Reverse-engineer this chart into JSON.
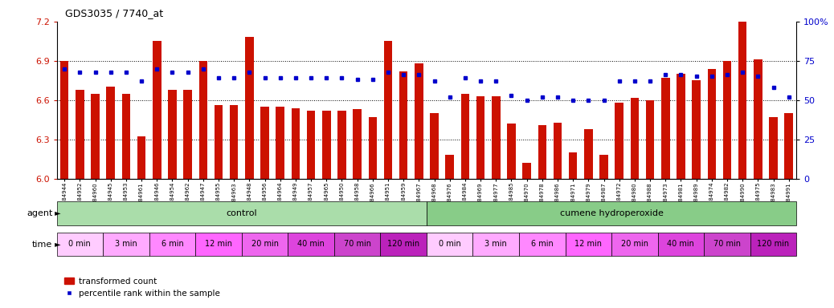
{
  "title": "GDS3035 / 7740_at",
  "samples": [
    "GSM184944",
    "GSM184952",
    "GSM184960",
    "GSM184945",
    "GSM184953",
    "GSM184961",
    "GSM184946",
    "GSM184954",
    "GSM184962",
    "GSM184947",
    "GSM184955",
    "GSM184963",
    "GSM184948",
    "GSM184956",
    "GSM184964",
    "GSM184949",
    "GSM184957",
    "GSM184965",
    "GSM184950",
    "GSM184958",
    "GSM184966",
    "GSM184951",
    "GSM184959",
    "GSM184967",
    "GSM184968",
    "GSM184976",
    "GSM184984",
    "GSM184969",
    "GSM184977",
    "GSM184985",
    "GSM184970",
    "GSM184978",
    "GSM184986",
    "GSM184971",
    "GSM184979",
    "GSM184987",
    "GSM184972",
    "GSM184980",
    "GSM184988",
    "GSM184973",
    "GSM184981",
    "GSM184989",
    "GSM184974",
    "GSM184982",
    "GSM184990",
    "GSM184975",
    "GSM184983",
    "GSM184991"
  ],
  "transformed_count": [
    6.9,
    6.68,
    6.65,
    6.7,
    6.65,
    6.32,
    7.05,
    6.68,
    6.68,
    6.9,
    6.56,
    6.56,
    7.08,
    6.55,
    6.55,
    6.54,
    6.52,
    6.52,
    6.52,
    6.53,
    6.47,
    7.05,
    6.82,
    6.88,
    6.5,
    6.18,
    6.65,
    6.63,
    6.63,
    6.42,
    6.12,
    6.41,
    6.43,
    6.2,
    6.38,
    6.18,
    6.58,
    6.62,
    6.6,
    6.77,
    6.8,
    6.75,
    6.84,
    6.9,
    7.2,
    6.91,
    6.47,
    6.5
  ],
  "percentile_rank": [
    70,
    68,
    68,
    68,
    68,
    62,
    70,
    68,
    68,
    70,
    64,
    64,
    68,
    64,
    64,
    64,
    64,
    64,
    64,
    63,
    63,
    68,
    66,
    66,
    62,
    52,
    64,
    62,
    62,
    53,
    50,
    52,
    52,
    50,
    50,
    50,
    62,
    62,
    62,
    66,
    66,
    65,
    65,
    66,
    68,
    65,
    58,
    52
  ],
  "ylim_left": [
    6.0,
    7.2
  ],
  "ylim_right": [
    0,
    100
  ],
  "yticks_left": [
    6.0,
    6.3,
    6.6,
    6.9,
    7.2
  ],
  "yticks_right": [
    0,
    25,
    50,
    75,
    100
  ],
  "ytick_labels_right": [
    "0",
    "25",
    "50",
    "75",
    "100%"
  ],
  "bar_color": "#cc1100",
  "dot_color": "#0000cc",
  "bg_color": "#ffffff",
  "control_color": "#aaddaa",
  "cumene_color": "#88cc88",
  "agent_label": "agent",
  "time_label": "time",
  "legend_bar_label": "transformed count",
  "legend_dot_label": "percentile rank within the sample",
  "agent_groups": [
    {
      "label": "control",
      "start": 0,
      "end": 24
    },
    {
      "label": "cumene hydroperoxide",
      "start": 24,
      "end": 48
    }
  ],
  "time_groups": [
    {
      "label": "0 min",
      "start": 0,
      "end": 3
    },
    {
      "label": "3 min",
      "start": 3,
      "end": 6
    },
    {
      "label": "6 min",
      "start": 6,
      "end": 9
    },
    {
      "label": "12 min",
      "start": 9,
      "end": 12
    },
    {
      "label": "20 min",
      "start": 12,
      "end": 15
    },
    {
      "label": "40 min",
      "start": 15,
      "end": 18
    },
    {
      "label": "70 min",
      "start": 18,
      "end": 21
    },
    {
      "label": "120 min",
      "start": 21,
      "end": 24
    },
    {
      "label": "0 min",
      "start": 24,
      "end": 27
    },
    {
      "label": "3 min",
      "start": 27,
      "end": 30
    },
    {
      "label": "6 min",
      "start": 30,
      "end": 33
    },
    {
      "label": "12 min",
      "start": 33,
      "end": 36
    },
    {
      "label": "20 min",
      "start": 36,
      "end": 39
    },
    {
      "label": "40 min",
      "start": 39,
      "end": 42
    },
    {
      "label": "70 min",
      "start": 42,
      "end": 45
    },
    {
      "label": "120 min",
      "start": 45,
      "end": 48
    }
  ],
  "time_palette": [
    "#ffccff",
    "#ffaaff",
    "#ff88ff",
    "#ff66ff",
    "#ee66ee",
    "#dd44dd",
    "#cc44cc",
    "#bb22bb"
  ]
}
